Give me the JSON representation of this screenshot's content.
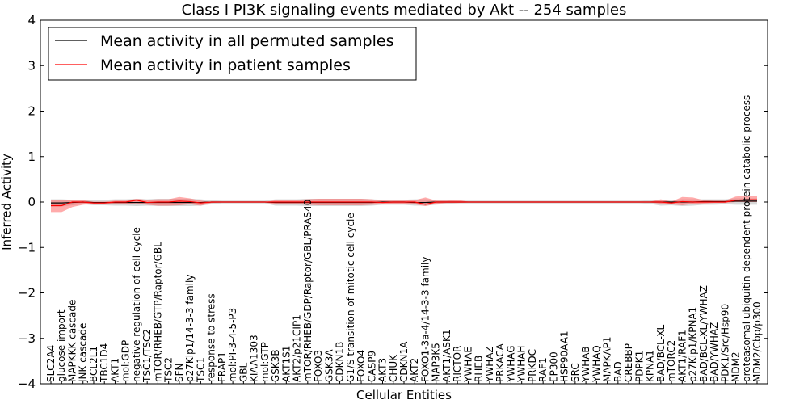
{
  "chart_data": {
    "type": "line",
    "title": "Class I PI3K signaling events mediated by Akt -- 254 samples",
    "xlabel": "Cellular Entities",
    "ylabel": "Inferred Activity",
    "ylim": [
      -4,
      4
    ],
    "yticks": [
      -4,
      -3,
      -2,
      -1,
      0,
      1,
      2,
      3,
      4
    ],
    "ytick_labels": [
      "−4",
      "−3",
      "−2",
      "−1",
      "0",
      "1",
      "2",
      "3",
      "4"
    ],
    "legend_position": "top-left",
    "categories": [
      "SLC2A4",
      "glucose import",
      "MAPKKK cascade",
      "JNK cascade",
      "BCL2L1",
      "TBC1D4",
      "AKT1",
      "mol:GDP",
      "negative regulation of cell cycle",
      "TSC1/TSC2",
      "mTOR/RHEB/GTP/Raptor/GBL",
      "TSC2",
      "SFN",
      "p27Kip1/14-3-3 family",
      "TSC1",
      "response to stress",
      "FRAP1",
      "mol:PI-3-4-5-P3",
      "GBL",
      "KIAA1303",
      "mol:GTP",
      "GSK3B",
      "AKT1S1",
      "AKT2/p21CIP1",
      "mTOR/RHEB/GDP/Raptor/GBL/PRAS40",
      "FOXO3",
      "GSK3A",
      "CDKN1B",
      "G1/S transition of mitotic cell cycle",
      "FOXO4",
      "CASP9",
      "AKT3",
      "CHUK",
      "CDKN1A",
      "AKT2",
      "FOXO1-3a-4/14-3-3 family",
      "MAP3K5",
      "AKT1/ASK1",
      "RICTOR",
      "YWHAE",
      "RHEB",
      "YWHAZ",
      "PRKACA",
      "YWHAG",
      "YWHAH",
      "PRKDC",
      "RAF1",
      "EP300",
      "HSP90AA1",
      "SRC",
      "YWHAB",
      "YWHAQ",
      "MAPKAP1",
      "BAD",
      "CREBBP",
      "PDPK1",
      "KPNA1",
      "BAD/BCL-XL",
      "mTORC2",
      "AKT1/RAF1",
      "p27Kip1/KPNA1",
      "BAD/BCL-XL/YWHAZ",
      "BAD/YWHAZ",
      "PDK1/Src/Hsp90",
      "MDM2",
      "proteasomal ubiquitin-dependent protein catabolic process",
      "MDM2/Cbp/p300"
    ],
    "series": [
      {
        "name": "Mean activity in all permuted samples",
        "color": "#000000",
        "values": [
          -0.02,
          -0.02,
          -0.01,
          0.0,
          -0.01,
          -0.01,
          -0.01,
          -0.01,
          -0.01,
          -0.01,
          -0.01,
          -0.01,
          -0.01,
          -0.01,
          -0.01,
          0.0,
          0.0,
          0.0,
          0.0,
          0.0,
          0.0,
          -0.01,
          -0.01,
          -0.01,
          -0.01,
          -0.01,
          -0.01,
          -0.01,
          -0.01,
          -0.01,
          -0.01,
          0.0,
          0.0,
          0.0,
          -0.01,
          -0.01,
          0.0,
          0.0,
          0.0,
          0.0,
          0.0,
          0.0,
          0.0,
          0.0,
          0.0,
          0.0,
          0.0,
          0.0,
          0.0,
          0.0,
          0.0,
          0.0,
          0.0,
          0.0,
          0.0,
          0.0,
          0.0,
          0.0,
          0.0,
          0.0,
          0.0,
          0.01,
          0.01,
          0.01,
          0.02,
          0.02,
          0.02
        ],
        "band_upper": [
          0.06,
          0.06,
          0.05,
          0.04,
          0.05,
          0.05,
          0.06,
          0.06,
          0.07,
          0.06,
          0.07,
          0.07,
          0.07,
          0.07,
          0.06,
          0.04,
          0.03,
          0.03,
          0.03,
          0.03,
          0.03,
          0.06,
          0.06,
          0.06,
          0.07,
          0.07,
          0.07,
          0.07,
          0.07,
          0.07,
          0.06,
          0.05,
          0.05,
          0.05,
          0.06,
          0.06,
          0.05,
          0.04,
          0.03,
          0.03,
          0.03,
          0.03,
          0.03,
          0.03,
          0.03,
          0.03,
          0.03,
          0.03,
          0.03,
          0.03,
          0.03,
          0.03,
          0.03,
          0.03,
          0.03,
          0.03,
          0.04,
          0.05,
          0.05,
          0.06,
          0.06,
          0.06,
          0.06,
          0.06,
          0.08,
          0.08,
          0.08
        ],
        "band_lower": [
          -0.1,
          -0.1,
          -0.07,
          -0.05,
          -0.07,
          -0.07,
          -0.08,
          -0.08,
          -0.09,
          -0.08,
          -0.09,
          -0.09,
          -0.09,
          -0.09,
          -0.08,
          -0.05,
          -0.03,
          -0.03,
          -0.03,
          -0.03,
          -0.03,
          -0.08,
          -0.08,
          -0.08,
          -0.09,
          -0.09,
          -0.09,
          -0.09,
          -0.09,
          -0.09,
          -0.08,
          -0.06,
          -0.06,
          -0.06,
          -0.08,
          -0.08,
          -0.06,
          -0.04,
          -0.03,
          -0.03,
          -0.03,
          -0.03,
          -0.03,
          -0.03,
          -0.03,
          -0.03,
          -0.03,
          -0.03,
          -0.03,
          -0.03,
          -0.03,
          -0.03,
          -0.03,
          -0.03,
          -0.03,
          -0.03,
          -0.04,
          -0.08,
          -0.07,
          -0.09,
          -0.08,
          -0.06,
          -0.06,
          -0.05,
          -0.06,
          -0.06,
          -0.06
        ]
      },
      {
        "name": "Mean activity in patient samples",
        "color": "#ff0000",
        "values": [
          -0.08,
          -0.08,
          0.0,
          0.0,
          -0.02,
          -0.02,
          0.0,
          0.0,
          0.04,
          -0.01,
          0.0,
          0.0,
          0.02,
          0.01,
          -0.02,
          0.0,
          0.0,
          0.0,
          0.0,
          0.0,
          0.0,
          0.0,
          0.0,
          0.0,
          0.0,
          0.0,
          0.0,
          0.0,
          0.0,
          0.0,
          0.0,
          -0.01,
          0.0,
          0.0,
          0.0,
          -0.05,
          0.0,
          0.0,
          0.0,
          0.0,
          0.0,
          0.0,
          0.0,
          0.0,
          0.0,
          0.0,
          0.0,
          0.0,
          0.0,
          0.0,
          0.0,
          0.0,
          0.0,
          0.0,
          0.0,
          0.0,
          0.0,
          0.0,
          -0.02,
          0.01,
          0.0,
          0.0,
          0.0,
          0.0,
          0.04,
          0.05,
          0.05
        ],
        "band_upper": [
          0.04,
          0.04,
          0.05,
          0.04,
          0.01,
          0.01,
          0.03,
          0.03,
          0.07,
          0.05,
          0.06,
          0.06,
          0.11,
          0.08,
          0.03,
          0.0,
          0.0,
          0.0,
          0.0,
          0.0,
          0.0,
          0.04,
          0.04,
          0.05,
          0.06,
          0.07,
          0.07,
          0.07,
          0.07,
          0.07,
          0.06,
          0.03,
          0.03,
          0.03,
          0.04,
          0.1,
          0.03,
          0.03,
          0.05,
          0.01,
          0.01,
          0.01,
          0.01,
          0.01,
          0.01,
          0.01,
          0.01,
          0.01,
          0.01,
          0.01,
          0.01,
          0.01,
          0.01,
          0.01,
          0.01,
          0.01,
          0.01,
          0.06,
          0.01,
          0.11,
          0.1,
          0.04,
          0.03,
          0.03,
          0.12,
          0.14,
          0.14
        ],
        "band_lower": [
          -0.22,
          -0.22,
          -0.11,
          -0.06,
          -0.04,
          -0.04,
          -0.04,
          -0.04,
          -0.03,
          -0.06,
          -0.08,
          -0.08,
          -0.07,
          -0.05,
          -0.08,
          -0.02,
          -0.01,
          -0.01,
          -0.01,
          -0.01,
          -0.01,
          -0.05,
          -0.05,
          -0.05,
          -0.06,
          -0.07,
          -0.07,
          -0.07,
          -0.07,
          -0.07,
          -0.06,
          -0.05,
          -0.04,
          -0.04,
          -0.05,
          -0.09,
          -0.04,
          -0.02,
          -0.02,
          -0.01,
          -0.01,
          -0.01,
          -0.01,
          -0.01,
          -0.01,
          -0.01,
          -0.01,
          -0.01,
          -0.01,
          -0.01,
          -0.01,
          -0.01,
          -0.01,
          -0.01,
          -0.01,
          -0.01,
          -0.01,
          -0.04,
          -0.05,
          -0.07,
          -0.04,
          -0.03,
          -0.02,
          -0.02,
          0.0,
          0.0,
          0.0
        ]
      }
    ]
  }
}
